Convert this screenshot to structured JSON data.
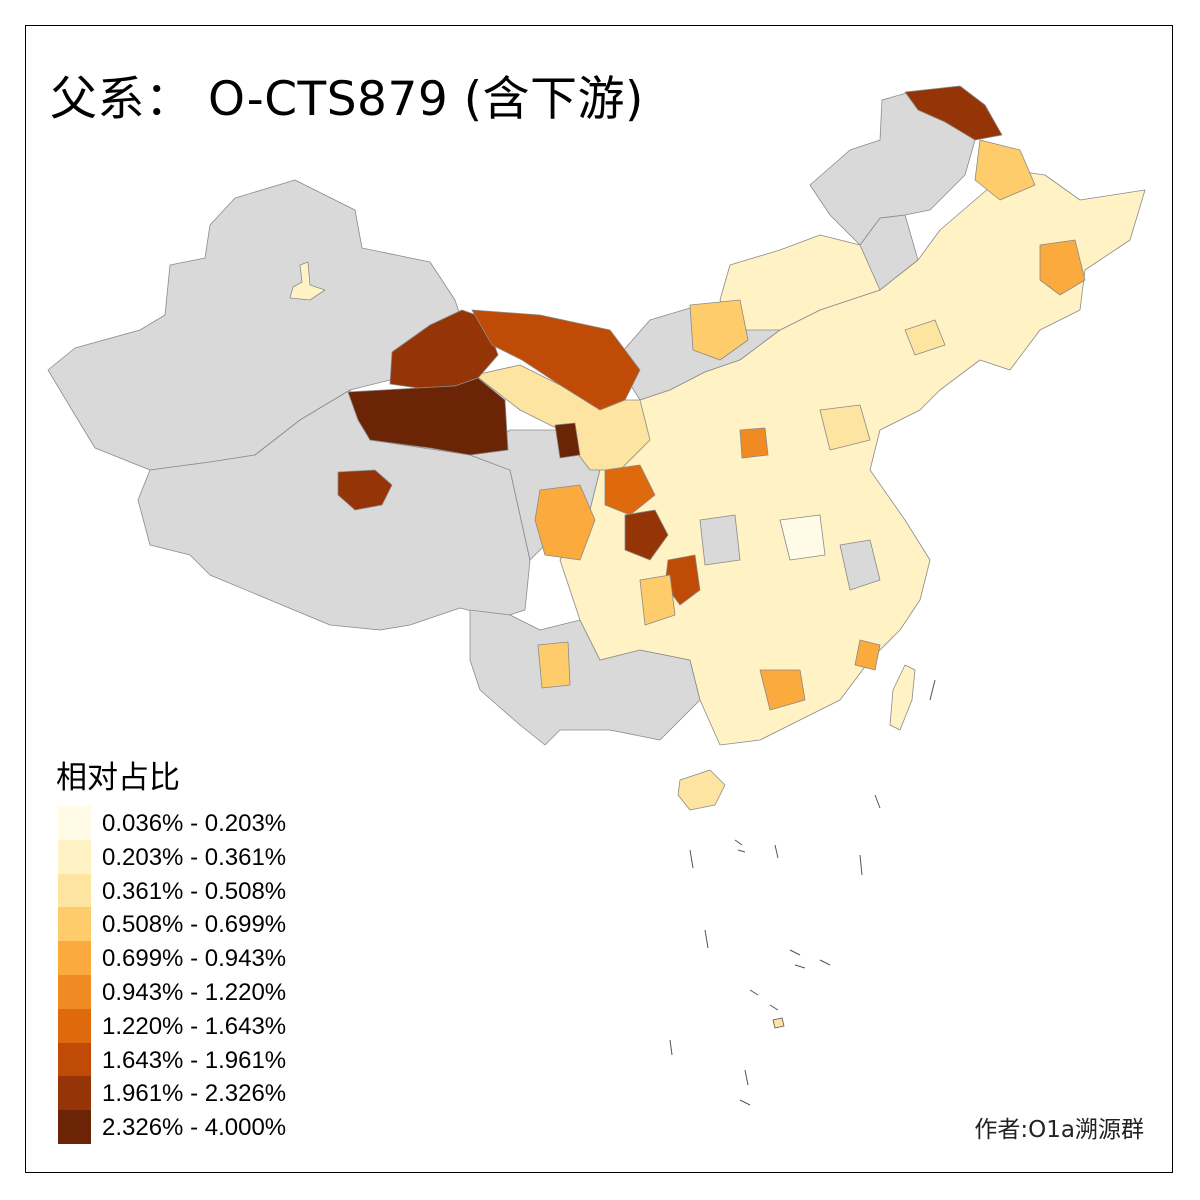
{
  "title": "父系： O-CTS879 (含下游)",
  "legend": {
    "title": "相对占比",
    "items": [
      {
        "label": "0.036% - 0.203%",
        "color": "#FFFBE6"
      },
      {
        "label": "0.203% - 0.361%",
        "color": "#FFF2C4"
      },
      {
        "label": "0.361% - 0.508%",
        "color": "#FEE4A1"
      },
      {
        "label": "0.508% - 0.699%",
        "color": "#FECC6A"
      },
      {
        "label": "0.699% - 0.943%",
        "color": "#FBAA3E"
      },
      {
        "label": "0.943% - 1.220%",
        "color": "#F08A23"
      },
      {
        "label": "1.220% - 1.643%",
        "color": "#DF6A0E"
      },
      {
        "label": "1.643% - 1.961%",
        "color": "#BF4B06"
      },
      {
        "label": "1.961% - 2.326%",
        "color": "#953507"
      },
      {
        "label": "2.326% - 4.000%",
        "color": "#6B2506"
      }
    ]
  },
  "no_data_color": "#D9D9D9",
  "credit": "作者:O1a溯源群"
}
